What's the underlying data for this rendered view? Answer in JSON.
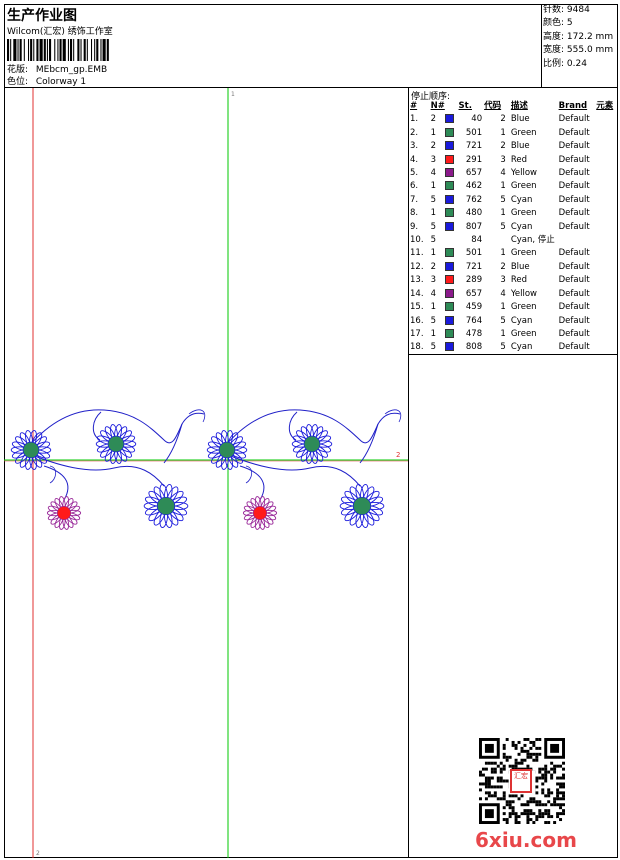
{
  "header": {
    "title": "生产作业图",
    "company": "Wilcom(汇宏) 绣饰工作室",
    "design_label": "花版:",
    "design_value": "MEbcm_gp.EMB",
    "colorway_label": "色位:",
    "colorway_value": "Colorway 1"
  },
  "stats": [
    {
      "label": "针数:",
      "value": "9484"
    },
    {
      "label": "颜色:",
      "value": "5"
    },
    {
      "label": "高度:",
      "value": "172.2 mm"
    },
    {
      "label": "宽度:",
      "value": "555.0 mm"
    },
    {
      "label": "比例:",
      "value": "0.24"
    }
  ],
  "stop_sequence": {
    "title": "停止顺序:",
    "columns": [
      "#",
      "N#",
      "St.",
      "代码",
      "描述",
      "Brand",
      "元素"
    ],
    "rows": [
      {
        "idx": "1.",
        "n": "2",
        "color": "#1a1adc",
        "st": "40",
        "code": "2",
        "desc": "Blue",
        "brand": "Default"
      },
      {
        "idx": "2.",
        "n": "1",
        "color": "#2e8b57",
        "st": "501",
        "code": "1",
        "desc": "Green",
        "brand": "Default"
      },
      {
        "idx": "3.",
        "n": "2",
        "color": "#1a1adc",
        "st": "721",
        "code": "2",
        "desc": "Blue",
        "brand": "Default"
      },
      {
        "idx": "4.",
        "n": "3",
        "color": "#ff1a1a",
        "st": "291",
        "code": "3",
        "desc": "Red",
        "brand": "Default"
      },
      {
        "idx": "5.",
        "n": "4",
        "color": "#8b1a8b",
        "st": "657",
        "code": "4",
        "desc": "Yellow",
        "brand": "Default"
      },
      {
        "idx": "6.",
        "n": "1",
        "color": "#2e8b57",
        "st": "462",
        "code": "1",
        "desc": "Green",
        "brand": "Default"
      },
      {
        "idx": "7.",
        "n": "5",
        "color": "#1a1adc",
        "st": "762",
        "code": "5",
        "desc": "Cyan",
        "brand": "Default"
      },
      {
        "idx": "8.",
        "n": "1",
        "color": "#2e8b57",
        "st": "480",
        "code": "1",
        "desc": "Green",
        "brand": "Default"
      },
      {
        "idx": "9.",
        "n": "5",
        "color": "#1a1adc",
        "st": "807",
        "code": "5",
        "desc": "Cyan",
        "brand": "Default"
      },
      {
        "idx": "10.",
        "n": "5",
        "color": "",
        "st": "84",
        "code": "",
        "desc": "Cyan, 停止",
        "brand": ""
      },
      {
        "idx": "11.",
        "n": "1",
        "color": "#2e8b57",
        "st": "501",
        "code": "1",
        "desc": "Green",
        "brand": "Default"
      },
      {
        "idx": "12.",
        "n": "2",
        "color": "#1a1adc",
        "st": "721",
        "code": "2",
        "desc": "Blue",
        "brand": "Default"
      },
      {
        "idx": "13.",
        "n": "3",
        "color": "#ff1a1a",
        "st": "289",
        "code": "3",
        "desc": "Red",
        "brand": "Default"
      },
      {
        "idx": "14.",
        "n": "4",
        "color": "#8b1a8b",
        "st": "657",
        "code": "4",
        "desc": "Yellow",
        "brand": "Default"
      },
      {
        "idx": "15.",
        "n": "1",
        "color": "#2e8b57",
        "st": "459",
        "code": "1",
        "desc": "Green",
        "brand": "Default"
      },
      {
        "idx": "16.",
        "n": "5",
        "color": "#1a1adc",
        "st": "764",
        "code": "5",
        "desc": "Cyan",
        "brand": "Default"
      },
      {
        "idx": "17.",
        "n": "1",
        "color": "#2e8b57",
        "st": "478",
        "code": "1",
        "desc": "Green",
        "brand": "Default"
      },
      {
        "idx": "18.",
        "n": "5",
        "color": "#1a1adc",
        "st": "808",
        "code": "5",
        "desc": "Cyan",
        "brand": "Default"
      }
    ]
  },
  "canvas": {
    "axis_top_label": "1",
    "axis_right_label": "2",
    "axis_bottom_label": "2",
    "colors": {
      "frame": "#000000",
      "red_guide": "#e23030",
      "green_guide": "#00c800",
      "stem": "#2020c8",
      "petal_blue": "#1a1adc",
      "petal_purple": "#9a2a9a",
      "center_green": "#2e8b57",
      "center_red": "#ff1a1a"
    }
  },
  "watermark": {
    "text": "6xiu.com",
    "seal_text": "汇宏"
  },
  "icons": {
    "qr": "qr-code-icon",
    "barcode": "barcode-icon"
  }
}
